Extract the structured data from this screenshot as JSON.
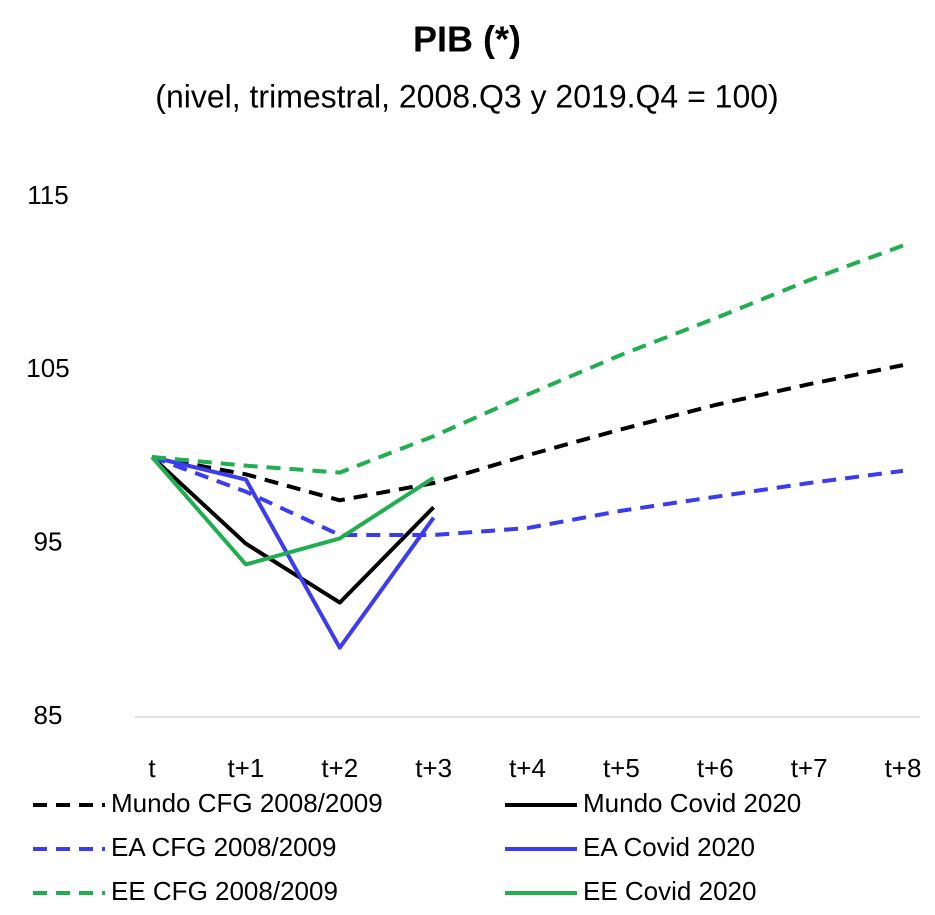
{
  "chart_data": {
    "type": "line",
    "title": "PIB (*)",
    "subtitle": "(nivel, trimestral, 2008.Q3 y 2019.Q4 = 100)",
    "categories": [
      "t",
      "t+1",
      "t+2",
      "t+3",
      "t+4",
      "t+5",
      "t+6",
      "t+7",
      "t+8"
    ],
    "ylim": [
      85,
      115
    ],
    "yticks": [
      85,
      95,
      105,
      115
    ],
    "grid": false,
    "legend": "bottom",
    "series": [
      {
        "name": "Mundo CFG 2008/2009",
        "color": "#000000",
        "dashed": true,
        "values": [
          100,
          99.0,
          97.5,
          98.5,
          100.1,
          101.6,
          103.0,
          104.2,
          105.3
        ]
      },
      {
        "name": "Mundo Covid 2020",
        "color": "#000000",
        "dashed": false,
        "values": [
          100,
          95.0,
          91.6,
          97.1,
          null,
          null,
          null,
          null,
          null
        ]
      },
      {
        "name": "EA CFG 2008/2009",
        "color": "#3b3bef",
        "dashed": true,
        "values": [
          100,
          98.0,
          95.5,
          95.5,
          95.9,
          96.9,
          97.7,
          98.5,
          99.2
        ]
      },
      {
        "name": "EA Covid 2020",
        "color": "#3b3bef",
        "dashed": false,
        "values": [
          100,
          98.7,
          89.0,
          96.5,
          null,
          null,
          null,
          null,
          null
        ]
      },
      {
        "name": "EE CFG 2008/2009",
        "color": "#1fae50",
        "dashed": true,
        "values": [
          100,
          99.5,
          99.1,
          101.2,
          103.6,
          105.9,
          108.0,
          110.2,
          112.2
        ]
      },
      {
        "name": "EE Covid 2020",
        "color": "#1fae50",
        "dashed": false,
        "values": [
          100,
          93.8,
          95.3,
          98.8,
          null,
          null,
          null,
          null,
          null
        ]
      }
    ]
  }
}
